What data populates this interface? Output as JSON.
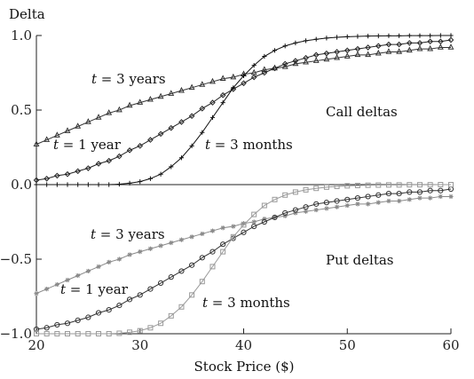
{
  "chart_data": {
    "type": "line",
    "ylabel": "Delta",
    "xlabel": "Stock Price ($)",
    "xlim": [
      20,
      60
    ],
    "ylim": [
      -1.0,
      1.0
    ],
    "x_ticks": [
      20,
      30,
      40,
      50,
      60
    ],
    "x_tick_labels": [
      "20",
      "30",
      "40",
      "50",
      "60"
    ],
    "y_ticks": [
      1.0,
      0.5,
      0.0,
      -0.5,
      -1.0
    ],
    "y_tick_labels": [
      "1.0",
      "0.5",
      "0.0",
      "−0.5",
      "−1.0"
    ],
    "zero_line": true,
    "grid": false,
    "x": [
      20,
      21,
      22,
      23,
      24,
      25,
      26,
      27,
      28,
      29,
      30,
      31,
      32,
      33,
      34,
      35,
      36,
      37,
      38,
      39,
      40,
      41,
      42,
      43,
      44,
      45,
      46,
      47,
      48,
      49,
      50,
      51,
      52,
      53,
      54,
      55,
      56,
      57,
      58,
      59,
      60
    ],
    "series": [
      {
        "group": "call",
        "marker": "triangle",
        "color": "#333333",
        "values": [
          0.27,
          0.3,
          0.33,
          0.36,
          0.39,
          0.42,
          0.45,
          0.48,
          0.5,
          0.53,
          0.55,
          0.57,
          0.59,
          0.61,
          0.63,
          0.65,
          0.67,
          0.69,
          0.71,
          0.72,
          0.74,
          0.75,
          0.77,
          0.78,
          0.79,
          0.81,
          0.82,
          0.83,
          0.84,
          0.85,
          0.86,
          0.87,
          0.87,
          0.88,
          0.89,
          0.89,
          0.9,
          0.91,
          0.91,
          0.92,
          0.92
        ]
      },
      {
        "group": "call",
        "marker": "diamond",
        "color": "#222222",
        "values": [
          0.03,
          0.04,
          0.06,
          0.07,
          0.09,
          0.11,
          0.14,
          0.16,
          0.19,
          0.23,
          0.26,
          0.3,
          0.34,
          0.38,
          0.42,
          0.46,
          0.51,
          0.55,
          0.6,
          0.64,
          0.68,
          0.72,
          0.75,
          0.78,
          0.81,
          0.83,
          0.85,
          0.87,
          0.88,
          0.89,
          0.9,
          0.91,
          0.92,
          0.93,
          0.94,
          0.94,
          0.95,
          0.95,
          0.96,
          0.96,
          0.97
        ]
      },
      {
        "group": "call",
        "marker": "plus",
        "color": "#111111",
        "values": [
          0.0,
          0.0,
          0.0,
          0.0,
          0.0,
          0.0,
          0.0,
          0.0,
          0.003,
          0.01,
          0.02,
          0.04,
          0.07,
          0.12,
          0.18,
          0.26,
          0.35,
          0.45,
          0.55,
          0.65,
          0.73,
          0.8,
          0.86,
          0.9,
          0.93,
          0.95,
          0.965,
          0.975,
          0.983,
          0.988,
          0.992,
          0.994,
          0.996,
          0.997,
          0.998,
          0.998,
          0.999,
          0.999,
          0.999,
          1.0,
          1.0
        ]
      },
      {
        "group": "put",
        "marker": "star",
        "color": "#8a8a8a",
        "values": [
          -0.73,
          -0.7,
          -0.67,
          -0.64,
          -0.61,
          -0.58,
          -0.55,
          -0.52,
          -0.5,
          -0.47,
          -0.45,
          -0.43,
          -0.41,
          -0.39,
          -0.37,
          -0.35,
          -0.33,
          -0.31,
          -0.29,
          -0.28,
          -0.26,
          -0.25,
          -0.23,
          -0.22,
          -0.21,
          -0.19,
          -0.18,
          -0.17,
          -0.16,
          -0.15,
          -0.14,
          -0.13,
          -0.13,
          -0.12,
          -0.11,
          -0.11,
          -0.1,
          -0.09,
          -0.09,
          -0.08,
          -0.08
        ]
      },
      {
        "group": "put",
        "marker": "circle",
        "color": "#333333",
        "values": [
          -0.97,
          -0.96,
          -0.94,
          -0.93,
          -0.91,
          -0.89,
          -0.86,
          -0.84,
          -0.81,
          -0.77,
          -0.74,
          -0.7,
          -0.66,
          -0.62,
          -0.58,
          -0.54,
          -0.49,
          -0.45,
          -0.4,
          -0.36,
          -0.32,
          -0.28,
          -0.25,
          -0.22,
          -0.19,
          -0.17,
          -0.15,
          -0.13,
          -0.12,
          -0.11,
          -0.1,
          -0.09,
          -0.08,
          -0.07,
          -0.06,
          -0.06,
          -0.05,
          -0.05,
          -0.04,
          -0.04,
          -0.03
        ]
      },
      {
        "group": "put",
        "marker": "square",
        "color": "#9a9a9a",
        "values": [
          -1.0,
          -1.0,
          -1.0,
          -1.0,
          -1.0,
          -1.0,
          -1.0,
          -1.0,
          -0.997,
          -0.99,
          -0.98,
          -0.96,
          -0.93,
          -0.88,
          -0.82,
          -0.74,
          -0.65,
          -0.55,
          -0.45,
          -0.35,
          -0.27,
          -0.2,
          -0.14,
          -0.1,
          -0.07,
          -0.05,
          -0.035,
          -0.025,
          -0.017,
          -0.012,
          -0.008,
          -0.006,
          -0.004,
          -0.003,
          -0.002,
          -0.002,
          -0.001,
          -0.001,
          -0.001,
          0.0,
          0.0
        ]
      }
    ],
    "annotations": [
      {
        "text": "t = 3 years",
        "series": 0
      },
      {
        "text": "t = 1 year",
        "series": 1
      },
      {
        "text": "t = 3 months",
        "series": 2
      },
      {
        "text": "Call deltas"
      },
      {
        "text": "t = 3 years",
        "series": 3
      },
      {
        "text": "t = 1 year",
        "series": 4
      },
      {
        "text": "t = 3 months",
        "series": 5
      },
      {
        "text": "Put deltas"
      }
    ]
  }
}
